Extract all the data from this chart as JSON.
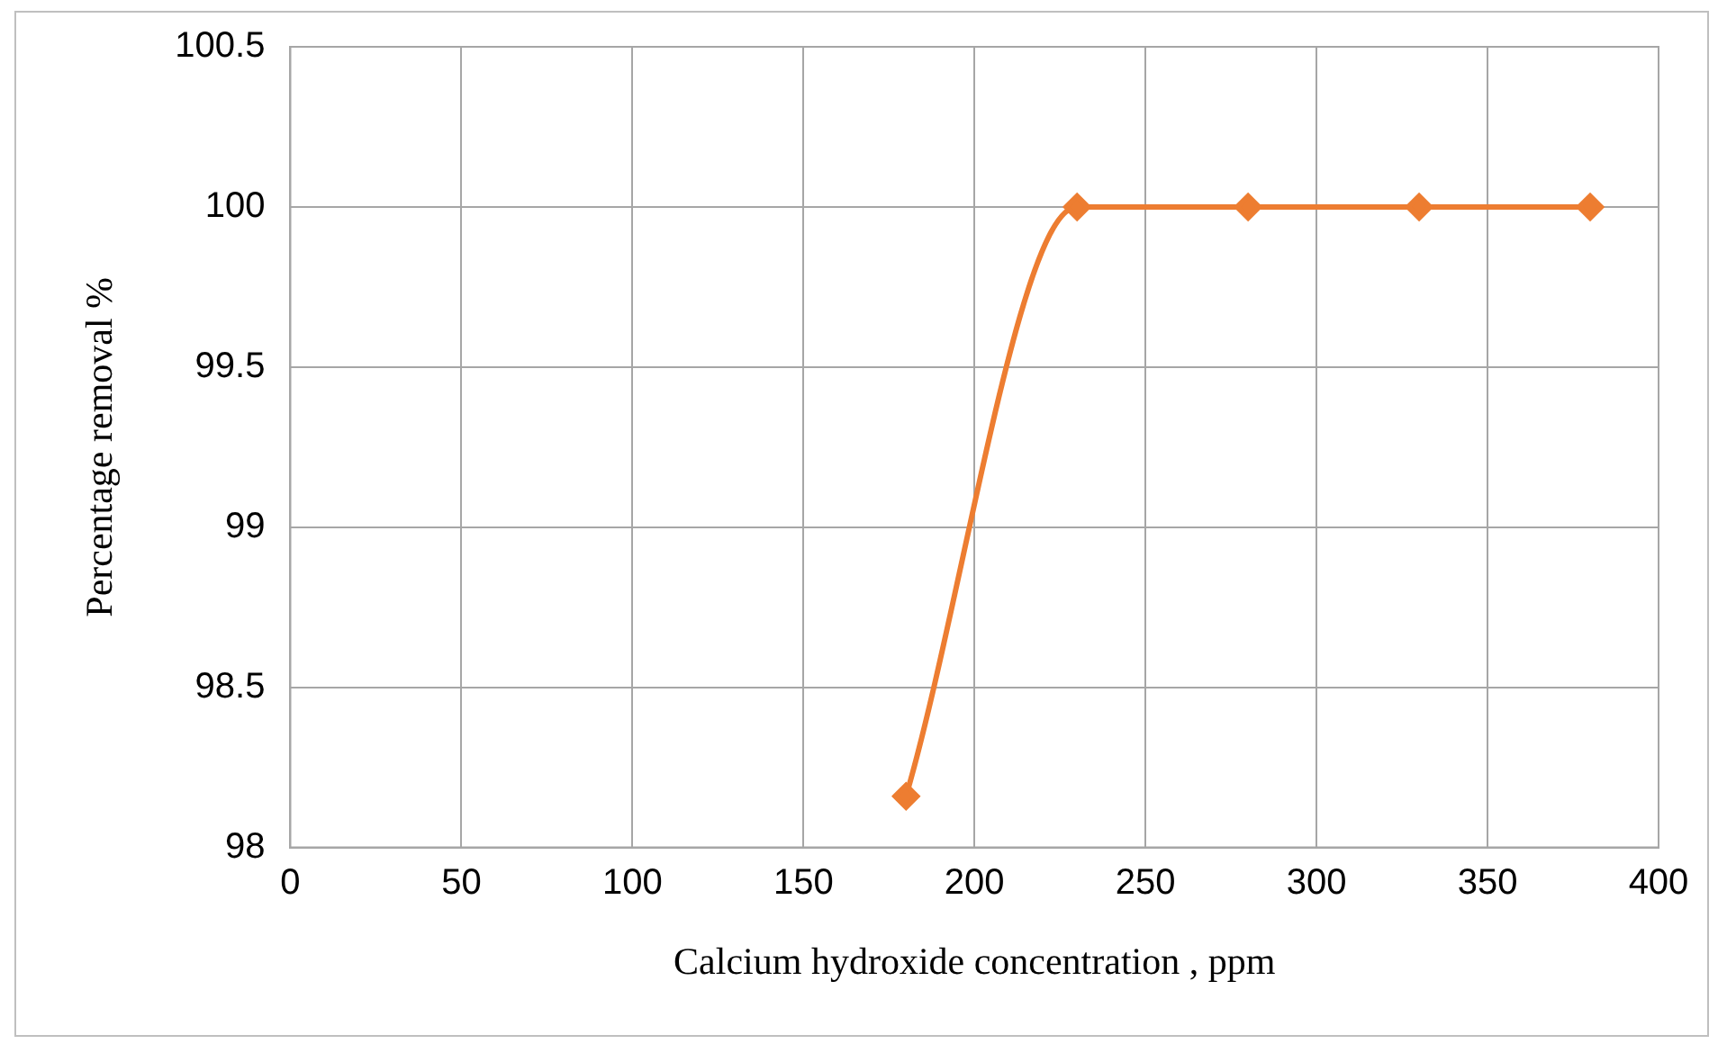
{
  "chart_data": {
    "type": "line",
    "xlabel": "Calcium hydroxide concentration , ppm",
    "ylabel": "Percentage removal %",
    "x": [
      180,
      230,
      280,
      330,
      380
    ],
    "series": [
      {
        "color": "#ed7d31",
        "values": [
          98.16,
          100,
          100,
          100,
          100
        ]
      }
    ],
    "xlim": [
      0,
      400
    ],
    "xticks": [
      0,
      50,
      100,
      150,
      200,
      250,
      300,
      350,
      400
    ],
    "ylim": [
      98,
      100.5
    ],
    "yticks": [
      98,
      98.5,
      99,
      99.5,
      100,
      100.5
    ],
    "grid": true,
    "marker": "diamond",
    "line_style": "solid"
  }
}
